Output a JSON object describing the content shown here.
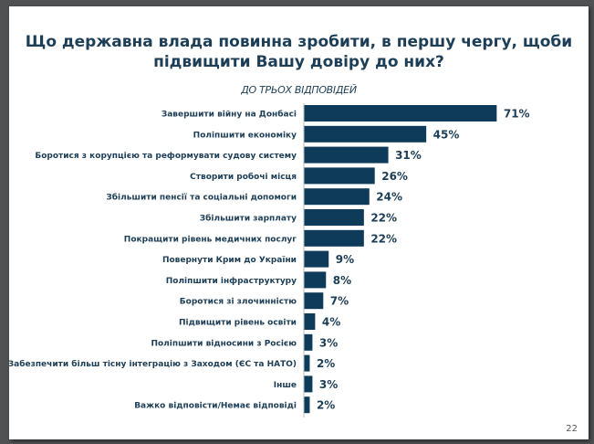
{
  "slide": {
    "page_number": "22"
  },
  "chart_data": {
    "type": "bar",
    "orientation": "horizontal",
    "title": "Що державна влада повинна зробити, в першу чергу, щоби підвищити Вашу довіру до них?",
    "subtitle": "ДО ТРЬОХ ВІДПОВІДЕЙ",
    "categories": [
      "Завершити війну на Донбасі",
      "Поліпшити економіку",
      "Боротися з корупцією та реформувати судову систему",
      "Створити робочі місця",
      "Збільшити пенсії та соціальні допомоги",
      "Збільшити зарплату",
      "Покращити рівень медичних послуг",
      "Повернути Крим до України",
      "Поліпшити інфраструктуру",
      "Боротися зі злочинністю",
      "Підвищити рівень освіти",
      "Поліпшити відносини з Росією",
      "Забезпечити більш тісну інтеграцію з Заходом (ЄС та НАТО)",
      "Інше",
      "Важко відповісти/Немає відповіді"
    ],
    "values": [
      71,
      45,
      31,
      26,
      24,
      22,
      22,
      9,
      8,
      7,
      4,
      3,
      2,
      3,
      2
    ],
    "value_labels": [
      "71%",
      "45%",
      "31%",
      "26%",
      "24%",
      "22%",
      "22%",
      "9%",
      "8%",
      "7%",
      "4%",
      "3%",
      "2%",
      "3%",
      "2%"
    ],
    "bar_color": "#0e3b5a",
    "grid": false,
    "xlim": [
      0,
      100
    ]
  }
}
